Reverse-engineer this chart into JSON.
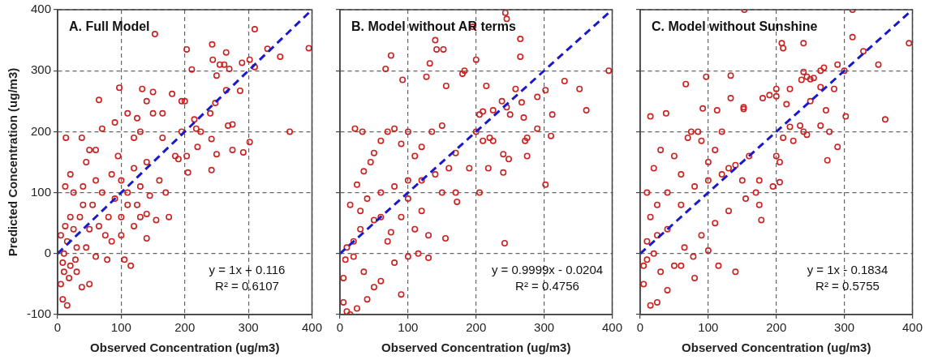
{
  "chart_data": [
    {
      "type": "scatter",
      "title": "A. Full Model",
      "xlabel": "Observed Concentration (ug/m3)",
      "ylabel": "Predicted Concentration (ug/m3)",
      "xlim": [
        0,
        400
      ],
      "ylim": [
        -100,
        400
      ],
      "xticks": [
        0,
        100,
        200,
        300,
        400
      ],
      "yticks": [
        -100,
        0,
        100,
        200,
        300,
        400
      ],
      "grid": true,
      "legend": false,
      "annotations": [
        "y = 1x + 0.116",
        "R² = 0.6107"
      ],
      "series": [
        {
          "type": "scatter",
          "color": "#cc2222",
          "marker": "circle",
          "x": [
            13,
            38,
            65,
            97,
            153,
            133,
            150,
            125,
            140,
            180,
            195,
            200,
            203,
            211,
            243,
            244,
            265,
            262,
            270,
            255,
            250,
            290,
            302,
            310,
            310,
            330,
            350,
            365,
            302,
            292,
            275,
            268,
            275,
            287,
            265,
            248,
            240,
            242,
            242,
            250,
            205,
            203,
            215,
            220,
            225,
            218,
            195,
            190,
            185,
            175,
            170,
            155,
            140,
            115,
            105,
            78,
            50,
            38,
            15,
            8,
            5,
            10,
            20,
            30,
            60,
            45,
            85,
            100,
            120,
            130,
            160,
            165,
            165,
            150,
            130,
            110,
            120,
            90,
            95,
            85,
            60,
            50,
            70,
            45,
            20,
            12,
            25,
            40,
            55,
            70,
            80,
            90,
            100,
            110,
            120,
            130,
            140,
            145,
            35,
            25,
            15,
            10,
            30,
            50,
            65,
            75,
            100,
            110,
            125,
            140,
            60,
            40,
            20,
            5,
            18,
            28,
            8,
            12,
            395
          ],
          "values": [
            190,
            190,
            252,
            272,
            360,
            270,
            265,
            222,
            250,
            262,
            250,
            250,
            335,
            302,
            343,
            318,
            330,
            310,
            303,
            310,
            292,
            313,
            318,
            306,
            368,
            336,
            323,
            200,
            183,
            166,
            170,
            210,
            212,
            267,
            268,
            247,
            230,
            188,
            137,
            163,
            133,
            160,
            220,
            175,
            200,
            205,
            200,
            155,
            160,
            60,
            100,
            55,
            25,
            -20,
            -10,
            -10,
            -50,
            -55,
            -85,
            -75,
            -50,
            -30,
            -20,
            -30,
            -5,
            10,
            20,
            30,
            45,
            60,
            120,
            190,
            230,
            230,
            200,
            230,
            190,
            215,
            160,
            130,
            170,
            170,
            205,
            150,
            130,
            110,
            100,
            110,
            80,
            100,
            60,
            90,
            120,
            100,
            140,
            110,
            150,
            95,
            60,
            40,
            20,
            0,
            10,
            40,
            45,
            30,
            60,
            80,
            80,
            65,
            120,
            80,
            60,
            30,
            -40,
            -10,
            -15,
            45,
            337
          ]
        },
        {
          "type": "line",
          "color": "#1a1acc",
          "marker": "none",
          "line_style": "dashed",
          "x": [
            0,
            400
          ],
          "values": [
            0,
            400
          ]
        }
      ]
    },
    {
      "type": "scatter",
      "title": "B. Model without AR terms",
      "xlabel": "Observed Concentration (ug/m3)",
      "xlim": [
        0,
        400
      ],
      "ylim": [
        -100,
        400
      ],
      "xticks": [
        0,
        100,
        200,
        300,
        400
      ],
      "yticks": [
        -100,
        0,
        100,
        200,
        300,
        400
      ],
      "tick_labels": "x",
      "grid": true,
      "legend": false,
      "annotations": [
        "y = 0.9999x - 0.0204",
        "R² = 0.4756"
      ],
      "series": [
        {
          "type": "scatter",
          "color": "#cc2222",
          "marker": "circle",
          "x": [
            243,
            245,
            265,
            265,
            195,
            140,
            142,
            152,
            75,
            67,
            200,
            132,
            183,
            180,
            92,
            127,
            156,
            215,
            258,
            352,
            330,
            302,
            290,
            267,
            238,
            362,
            312,
            245,
            250,
            270,
            225,
            205,
            210,
            290,
            310,
            275,
            272,
            200,
            210,
            220,
            225,
            240,
            248,
            275,
            218,
            240,
            190,
            205,
            172,
            242,
            302,
            155,
            130,
            115,
            100,
            90,
            40,
            10,
            15,
            25,
            5,
            8,
            20,
            35,
            50,
            60,
            80,
            75,
            50,
            30,
            15,
            25,
            35,
            45,
            50,
            60,
            70,
            80,
            100,
            90,
            110,
            120,
            135,
            150,
            170,
            160,
            140,
            120,
            100,
            80,
            60,
            40,
            30,
            20,
            10,
            60,
            90,
            120,
            150,
            170,
            100,
            70,
            110,
            130,
            5,
            22,
            33,
            395
          ],
          "values": [
            395,
            385,
            352,
            323,
            372,
            350,
            335,
            335,
            325,
            303,
            318,
            312,
            300,
            295,
            285,
            290,
            275,
            275,
            270,
            270,
            283,
            268,
            257,
            248,
            250,
            235,
            228,
            240,
            228,
            223,
            235,
            228,
            233,
            205,
            193,
            190,
            185,
            200,
            185,
            190,
            185,
            163,
            155,
            160,
            140,
            133,
            140,
            100,
            85,
            17,
            113,
            25,
            -7,
            0,
            -5,
            -67,
            -75,
            -95,
            -100,
            -90,
            -40,
            -10,
            -5,
            -30,
            -55,
            -45,
            -15,
            35,
            55,
            70,
            80,
            113,
            135,
            150,
            165,
            185,
            200,
            205,
            200,
            180,
            160,
            175,
            200,
            210,
            165,
            140,
            130,
            120,
            120,
            110,
            100,
            90,
            40,
            20,
            10,
            60,
            60,
            70,
            100,
            100,
            90,
            20,
            40,
            30,
            -80,
            205,
            200,
            300
          ]
        },
        {
          "type": "line",
          "color": "#1a1acc",
          "marker": "none",
          "line_style": "dashed",
          "x": [
            0,
            400
          ],
          "values": [
            0,
            400
          ]
        }
      ]
    },
    {
      "type": "scatter",
      "title": "C. Model without Sunshine",
      "xlabel": "Observed Concentration (ug/m3)",
      "xlim": [
        0,
        400
      ],
      "ylim": [
        -100,
        400
      ],
      "xticks": [
        0,
        100,
        200,
        300,
        400
      ],
      "yticks": [
        -100,
        0,
        100,
        200,
        300,
        400
      ],
      "tick_labels": "x",
      "grid": true,
      "legend": false,
      "annotations": [
        "y = 1x - 0.1834",
        "R² = 0.5755"
      ],
      "series": [
        {
          "type": "scatter",
          "color": "#cc2222",
          "marker": "circle",
          "x": [
            153,
            312,
            312,
            240,
            208,
            210,
            395,
            328,
            350,
            290,
            270,
            265,
            240,
            245,
            250,
            255,
            237,
            265,
            285,
            300,
            97,
            133,
            67,
            15,
            38,
            92,
            113,
            133,
            152,
            152,
            200,
            200,
            190,
            180,
            220,
            215,
            250,
            273,
            302,
            360,
            265,
            278,
            290,
            275,
            235,
            240,
            245,
            220,
            225,
            210,
            200,
            205,
            195,
            205,
            178,
            175,
            140,
            115,
            80,
            78,
            100,
            60,
            40,
            25,
            15,
            5,
            10,
            20,
            30,
            50,
            65,
            90,
            110,
            130,
            155,
            170,
            150,
            130,
            110,
            90,
            70,
            50,
            30,
            20,
            10,
            15,
            25,
            40,
            60,
            80,
            100,
            120,
            140,
            160,
            175,
            120,
            100,
            60,
            40,
            25,
            10,
            5,
            85,
            75
          ],
          "values": [
            400,
            400,
            355,
            345,
            345,
            337,
            345,
            332,
            310,
            310,
            305,
            300,
            298,
            290,
            286,
            288,
            285,
            273,
            270,
            300,
            290,
            292,
            278,
            225,
            230,
            238,
            235,
            255,
            240,
            237,
            258,
            270,
            260,
            255,
            270,
            245,
            250,
            235,
            225,
            220,
            210,
            200,
            175,
            153,
            210,
            200,
            195,
            208,
            185,
            190,
            160,
            150,
            110,
            117,
            55,
            80,
            -30,
            -20,
            -40,
            -5,
            5,
            -20,
            -60,
            -80,
            -85,
            -50,
            -10,
            0,
            -30,
            -20,
            10,
            30,
            50,
            70,
            90,
            100,
            120,
            140,
            170,
            185,
            190,
            160,
            170,
            140,
            100,
            60,
            80,
            100,
            80,
            110,
            120,
            130,
            145,
            160,
            120,
            200,
            150,
            130,
            40,
            30,
            20,
            -20,
            200,
            200
          ]
        },
        {
          "type": "line",
          "color": "#1a1acc",
          "marker": "none",
          "line_style": "dashed",
          "x": [
            0,
            400
          ],
          "values": [
            0,
            400
          ]
        }
      ]
    }
  ]
}
